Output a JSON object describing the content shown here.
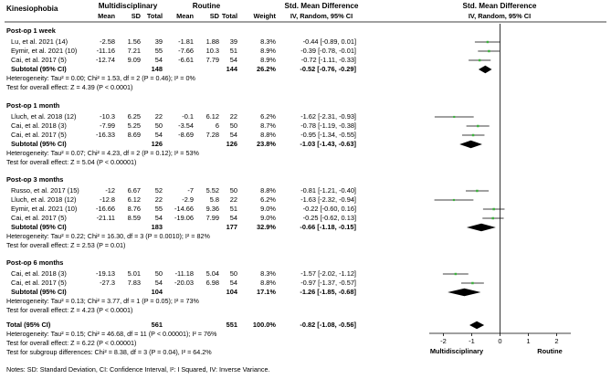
{
  "header": {
    "outcome": "Kinesiophobia",
    "group1": "Multidisciplinary",
    "group2": "Routine",
    "col_mean": "Mean",
    "col_sd": "SD",
    "col_total": "Total",
    "col_weight": "Weight",
    "effect_title": "Std. Mean Difference",
    "effect_sub": "IV, Random, 95% CI",
    "plot_title": "Std. Mean Difference",
    "plot_sub": "IV, Random, 95% CI"
  },
  "subgroups": [
    {
      "title": "Post-op 1 week",
      "studies": [
        {
          "study": "Lu, et al. 2021 (14)",
          "m1": "-2.58",
          "sd1": "1.56",
          "n1": "39",
          "m2": "-1.81",
          "sd2": "1.88",
          "n2": "39",
          "weight": "8.3%",
          "ci": "-0.44 [-0.89, 0.01]"
        },
        {
          "study": "Eymir, et al. 2021 (10)",
          "m1": "-11.16",
          "sd1": "7.21",
          "n1": "55",
          "m2": "-7.66",
          "sd2": "10.3",
          "n2": "51",
          "weight": "8.9%",
          "ci": "-0.39 [-0.78, -0.01]"
        },
        {
          "study": "Cai, et al. 2017 (5)",
          "m1": "-12.74",
          "sd1": "9.09",
          "n1": "54",
          "m2": "-6.61",
          "sd2": "7.79",
          "n2": "54",
          "weight": "8.9%",
          "ci": "-0.72 [-1.11, -0.33]"
        }
      ],
      "subtotal": {
        "label": "Subtotal (95% CI)",
        "n1": "148",
        "n2": "144",
        "weight": "26.2%",
        "ci": "-0.52 [-0.76, -0.29]"
      },
      "heterogeneity": "Heterogeneity: Tau² = 0.00; Chi² = 1.53, df = 2 (P = 0.46); I² = 0%",
      "overall": "Test for overall effect: Z = 4.39 (P < 0.0001)"
    },
    {
      "title": "Post-op 1 month",
      "studies": [
        {
          "study": "Lluch, et al. 2018 (12)",
          "m1": "-10.3",
          "sd1": "6.25",
          "n1": "22",
          "m2": "-0.1",
          "sd2": "6.12",
          "n2": "22",
          "weight": "6.2%",
          "ci": "-1.62 [-2.31, -0.93]"
        },
        {
          "study": "Cai, et al. 2018 (3)",
          "m1": "-7.99",
          "sd1": "5.25",
          "n1": "50",
          "m2": "-3.54",
          "sd2": "6",
          "n2": "50",
          "weight": "8.7%",
          "ci": "-0.78 [-1.19, -0.38]"
        },
        {
          "study": "Cai, et al. 2017 (5)",
          "m1": "-16.33",
          "sd1": "8.69",
          "n1": "54",
          "m2": "-8.69",
          "sd2": "7.28",
          "n2": "54",
          "weight": "8.8%",
          "ci": "-0.95 [-1.34, -0.55]"
        }
      ],
      "subtotal": {
        "label": "Subtotal (95% CI)",
        "n1": "126",
        "n2": "126",
        "weight": "23.8%",
        "ci": "-1.03 [-1.43, -0.63]"
      },
      "heterogeneity": "Heterogeneity: Tau² = 0.07; Chi² = 4.23, df = 2 (P = 0.12); I² = 53%",
      "overall": "Test for overall effect: Z = 5.04 (P < 0.00001)"
    },
    {
      "title": "Post-op 3 months",
      "studies": [
        {
          "study": "Russo, et al. 2017 (15)",
          "m1": "-12",
          "sd1": "6.67",
          "n1": "52",
          "m2": "-7",
          "sd2": "5.52",
          "n2": "50",
          "weight": "8.8%",
          "ci": "-0.81 [-1.21, -0.40]"
        },
        {
          "study": "Lluch, et al. 2018 (12)",
          "m1": "-12.8",
          "sd1": "6.12",
          "n1": "22",
          "m2": "-2.9",
          "sd2": "5.8",
          "n2": "22",
          "weight": "6.2%",
          "ci": "-1.63 [-2.32, -0.94]"
        },
        {
          "study": "Eymir, et al. 2021 (10)",
          "m1": "-16.66",
          "sd1": "8.76",
          "n1": "55",
          "m2": "-14.66",
          "sd2": "9.36",
          "n2": "51",
          "weight": "9.0%",
          "ci": "-0.22 [-0.60, 0.16]"
        },
        {
          "study": "Cai, et al. 2017 (5)",
          "m1": "-21.11",
          "sd1": "8.59",
          "n1": "54",
          "m2": "-19.06",
          "sd2": "7.99",
          "n2": "54",
          "weight": "9.0%",
          "ci": "-0.25 [-0.62, 0.13]"
        }
      ],
      "subtotal": {
        "label": "Subtotal (95% CI)",
        "n1": "183",
        "n2": "177",
        "weight": "32.9%",
        "ci": "-0.66 [-1.18, -0.15]"
      },
      "heterogeneity": "Heterogeneity: Tau² = 0.22; Chi² = 16.30, df = 3 (P = 0.0010); I² = 82%",
      "overall": "Test for overall effect: Z = 2.53 (P = 0.01)"
    },
    {
      "title": "Post-op 6 months",
      "studies": [
        {
          "study": "Cai, et al. 2018 (3)",
          "m1": "-19.13",
          "sd1": "5.01",
          "n1": "50",
          "m2": "-11.18",
          "sd2": "5.04",
          "n2": "50",
          "weight": "8.3%",
          "ci": "-1.57 [-2.02, -1.12]"
        },
        {
          "study": "Cai, et al. 2017 (5)",
          "m1": "-27.3",
          "sd1": "7.83",
          "n1": "54",
          "m2": "-20.03",
          "sd2": "6.98",
          "n2": "54",
          "weight": "8.8%",
          "ci": "-0.97 [-1.37, -0.57]"
        }
      ],
      "subtotal": {
        "label": "Subtotal (95% CI)",
        "n1": "104",
        "n2": "104",
        "weight": "17.1%",
        "ci": "-1.26 [-1.85, -0.68]"
      },
      "heterogeneity": "Heterogeneity: Tau² = 0.13; Chi² = 3.77, df = 1 (P = 0.05); I² = 73%",
      "overall": "Test for overall effect: Z = 4.23 (P < 0.0001)"
    }
  ],
  "total": {
    "label": "Total (95% CI)",
    "n1": "561",
    "n2": "551",
    "weight": "100.0%",
    "ci": "-0.82 [-1.08, -0.56]",
    "heterogeneity": "Heterogeneity: Tau² = 0.15; Chi² = 46.68, df = 11 (P < 0.00001); I² = 76%",
    "overall": "Test for overall effect: Z = 6.22 (P < 0.00001)",
    "subgroup_diff": "Test for subgroup differences: Chi² = 8.38, df = 3 (P = 0.04), I² = 64.2%"
  },
  "axis_labels": {
    "left": "Multidisciplinary",
    "right": "Routine"
  },
  "notes": "Notes: SD: Standard Deviation, CI: Confidence Interval, I²: I Squared, IV: Inverse Variance.",
  "colors": {
    "point": "#3cb43c",
    "diamond": "#000000",
    "line": "#000000"
  },
  "chart_data": {
    "type": "forest",
    "title": "Kinesiophobia",
    "xlabel_left": "Multidisciplinary",
    "xlabel_right": "Routine",
    "xlim": [
      -2.5,
      2.5
    ],
    "xticks": [
      -2,
      -1,
      0,
      1,
      2
    ],
    "studies": [
      {
        "subgroup": "Post-op 1 week",
        "study": "Lu, et al. 2021 (14)",
        "smd": -0.44,
        "lo": -0.89,
        "hi": 0.01,
        "weight": 8.3
      },
      {
        "subgroup": "Post-op 1 week",
        "study": "Eymir, et al. 2021 (10)",
        "smd": -0.39,
        "lo": -0.78,
        "hi": -0.01,
        "weight": 8.9
      },
      {
        "subgroup": "Post-op 1 week",
        "study": "Cai, et al. 2017 (5)",
        "smd": -0.72,
        "lo": -1.11,
        "hi": -0.33,
        "weight": 8.9
      },
      {
        "subgroup": "Post-op 1 month",
        "study": "Lluch, et al. 2018 (12)",
        "smd": -1.62,
        "lo": -2.31,
        "hi": -0.93,
        "weight": 6.2
      },
      {
        "subgroup": "Post-op 1 month",
        "study": "Cai, et al. 2018 (3)",
        "smd": -0.78,
        "lo": -1.19,
        "hi": -0.38,
        "weight": 8.7
      },
      {
        "subgroup": "Post-op 1 month",
        "study": "Cai, et al. 2017 (5)",
        "smd": -0.95,
        "lo": -1.34,
        "hi": -0.55,
        "weight": 8.8
      },
      {
        "subgroup": "Post-op 3 months",
        "study": "Russo, et al. 2017 (15)",
        "smd": -0.81,
        "lo": -1.21,
        "hi": -0.4,
        "weight": 8.8
      },
      {
        "subgroup": "Post-op 3 months",
        "study": "Lluch, et al. 2018 (12)",
        "smd": -1.63,
        "lo": -2.32,
        "hi": -0.94,
        "weight": 6.2
      },
      {
        "subgroup": "Post-op 3 months",
        "study": "Eymir, et al. 2021 (10)",
        "smd": -0.22,
        "lo": -0.6,
        "hi": 0.16,
        "weight": 9.0
      },
      {
        "subgroup": "Post-op 3 months",
        "study": "Cai, et al. 2017 (5)",
        "smd": -0.25,
        "lo": -0.62,
        "hi": 0.13,
        "weight": 9.0
      },
      {
        "subgroup": "Post-op 6 months",
        "study": "Cai, et al. 2018 (3)",
        "smd": -1.57,
        "lo": -2.02,
        "hi": -1.12,
        "weight": 8.3
      },
      {
        "subgroup": "Post-op 6 months",
        "study": "Cai, et al. 2017 (5)",
        "smd": -0.97,
        "lo": -1.37,
        "hi": -0.57,
        "weight": 8.8
      }
    ],
    "subtotals": [
      {
        "subgroup": "Post-op 1 week",
        "smd": -0.52,
        "lo": -0.76,
        "hi": -0.29
      },
      {
        "subgroup": "Post-op 1 month",
        "smd": -1.03,
        "lo": -1.43,
        "hi": -0.63
      },
      {
        "subgroup": "Post-op 3 months",
        "smd": -0.66,
        "lo": -1.18,
        "hi": -0.15
      },
      {
        "subgroup": "Post-op 6 months",
        "smd": -1.26,
        "lo": -1.85,
        "hi": -0.68
      }
    ],
    "overall": {
      "smd": -0.82,
      "lo": -1.08,
      "hi": -0.56
    }
  }
}
